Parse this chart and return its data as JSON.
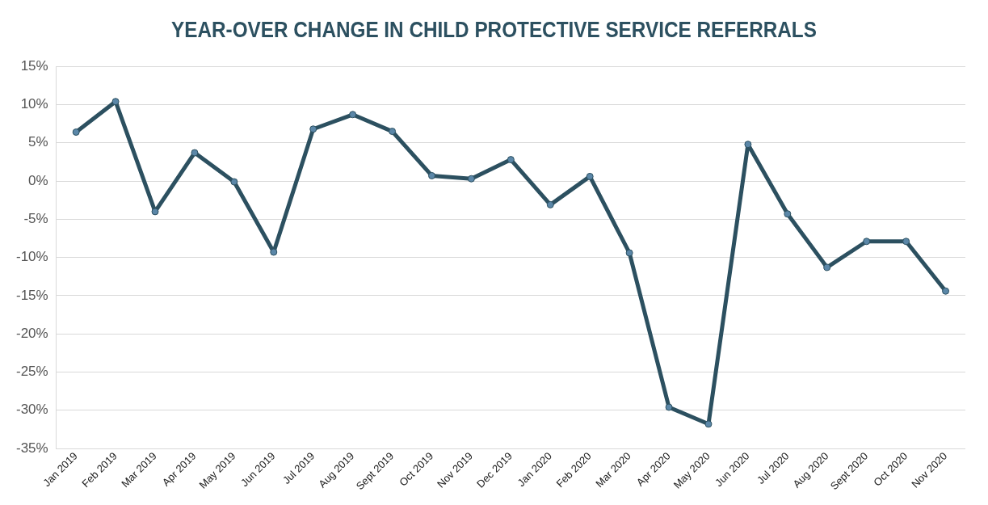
{
  "chart_data": {
    "type": "line",
    "title": "YEAR-OVER CHANGE IN CHILD PROTECTIVE SERVICE REFERRALS",
    "categories": [
      "Jan 2019",
      "Feb 2019",
      "Mar 2019",
      "Apr 2019",
      "May 2019",
      "Jun 2019",
      "Jul 2019",
      "Aug 2019",
      "Sept 2019",
      "Oct 2019",
      "Nov 2019",
      "Dec 2019",
      "Jan 2020",
      "Feb 2020",
      "Mar 2020",
      "Apr 2020",
      "May 2020",
      "Jun 2020",
      "Jul 2020",
      "Aug 2020",
      "Sept 2020",
      "Oct 2020",
      "Nov 2020"
    ],
    "series": [
      {
        "color": "#2c5060",
        "values": [
          6.4,
          10.4,
          -4.0,
          3.7,
          -0.1,
          -9.3,
          6.8,
          8.7,
          6.5,
          0.7,
          0.3,
          2.8,
          -3.1,
          0.6,
          -9.4,
          -29.6,
          -31.8,
          4.8,
          -4.3,
          -11.3,
          -7.9,
          -7.9,
          -14.4
        ]
      }
    ],
    "ylim": [
      -35,
      15
    ],
    "yticks": [
      {
        "value": -35,
        "label": "-35%"
      },
      {
        "value": -30,
        "label": "-30%"
      },
      {
        "value": -25,
        "label": "-25%"
      },
      {
        "value": -20,
        "label": "-20%"
      },
      {
        "value": -15,
        "label": "-15%"
      },
      {
        "value": -10,
        "label": "-10%"
      },
      {
        "value": -5,
        "label": "-5%"
      },
      {
        "value": 0,
        "label": "0%"
      },
      {
        "value": 5,
        "label": "5%"
      },
      {
        "value": 10,
        "label": "10%"
      },
      {
        "value": 15,
        "label": "15%"
      }
    ],
    "grid": "y",
    "legend": false,
    "marker": "circle",
    "line_style": "solid"
  }
}
